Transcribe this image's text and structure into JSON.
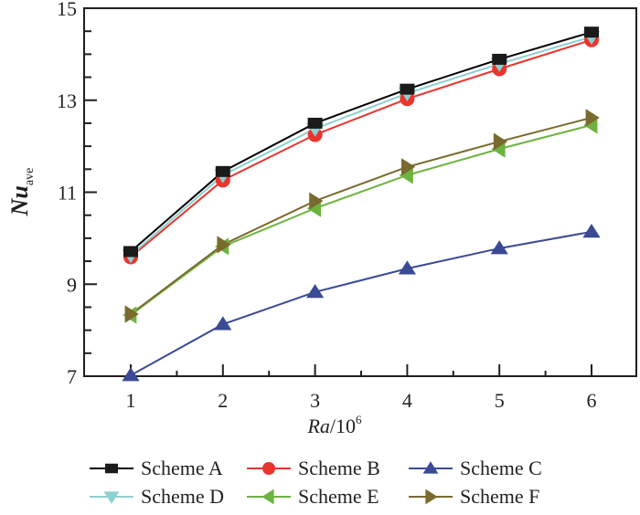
{
  "chart_data": {
    "type": "line",
    "title": "",
    "xlabel": "Ra/10^6",
    "xlabel_parts": {
      "italic": "Ra",
      "plain": "/10",
      "sup": "6"
    },
    "ylabel": "Nu_ave",
    "ylabel_parts": {
      "italic": "Nu",
      "sub": "ave"
    },
    "x": [
      1,
      2,
      3,
      4,
      5,
      6
    ],
    "xlim": [
      0.5,
      6.5
    ],
    "ylim": [
      7,
      15
    ],
    "xticks": [
      1,
      2,
      3,
      4,
      5,
      6
    ],
    "yticks": [
      7,
      9,
      11,
      13,
      15
    ],
    "grid": false,
    "legend_position": "bottom",
    "series": [
      {
        "name": "Scheme A",
        "marker": "square",
        "color": "#000000",
        "marker_color": "#1a1a1a",
        "values": [
          9.71,
          11.45,
          12.5,
          13.24,
          13.89,
          14.48
        ]
      },
      {
        "name": "Scheme B",
        "marker": "circle",
        "color": "#e8352e",
        "marker_color": "#e8352e",
        "values": [
          9.59,
          11.26,
          12.25,
          13.03,
          13.68,
          14.31
        ]
      },
      {
        "name": "Scheme C",
        "marker": "triangle-up",
        "color": "#3b4a95",
        "marker_color": "#3b4a95",
        "values": [
          7.02,
          8.13,
          8.83,
          9.34,
          9.78,
          10.14
        ]
      },
      {
        "name": "Scheme D",
        "marker": "triangle-down",
        "color": "#8fcfcf",
        "marker_color": "#8fcfcf",
        "values": [
          9.63,
          11.37,
          12.38,
          13.15,
          13.79,
          14.38
        ]
      },
      {
        "name": "Scheme E",
        "marker": "triangle-left",
        "color": "#6db33f",
        "marker_color": "#6db33f",
        "values": [
          8.33,
          9.82,
          10.65,
          11.37,
          11.94,
          12.46
        ]
      },
      {
        "name": "Scheme F",
        "marker": "triangle-right",
        "color": "#7a6a2e",
        "marker_color": "#7a6a2e",
        "values": [
          8.35,
          9.86,
          10.81,
          11.55,
          12.1,
          12.62
        ]
      }
    ]
  }
}
